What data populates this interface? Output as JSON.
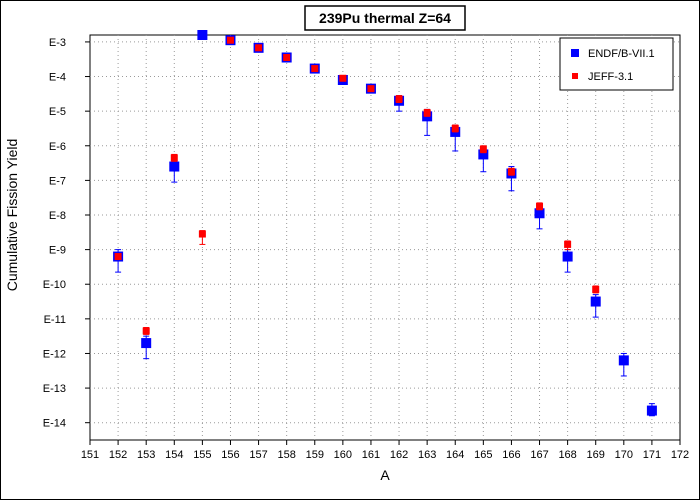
{
  "chart_data": {
    "type": "scatter",
    "title": "239Pu thermal Z=64",
    "xlabel": "A",
    "ylabel": "Cumulative Fission Yield",
    "xlim": [
      151,
      172
    ],
    "ylim_log10": [
      -14.5,
      -2.8
    ],
    "y_scale": "log",
    "grid": true,
    "legend_position": "top-right",
    "x_ticks": [
      151,
      152,
      153,
      154,
      155,
      156,
      157,
      158,
      159,
      160,
      161,
      162,
      163,
      164,
      165,
      166,
      167,
      168,
      169,
      170,
      171,
      172
    ],
    "x_tick_labels": [
      "151",
      "152",
      "153",
      "154",
      "155",
      "156",
      "157",
      "158",
      "159",
      "160",
      "161",
      "162",
      "163",
      "164",
      "165",
      "166",
      "167",
      "168",
      "169",
      "170",
      "171",
      "172"
    ],
    "y_ticks_log10": [
      -3,
      -4,
      -5,
      -6,
      -7,
      -8,
      -9,
      -10,
      -11,
      -12,
      -13,
      -14
    ],
    "y_tick_labels": [
      "E-3",
      "E-4",
      "E-5",
      "E-6",
      "E-7",
      "E-8",
      "E-9",
      "E-10",
      "E-11",
      "E-12",
      "E-13",
      "E-14"
    ],
    "series": [
      {
        "name": "ENDF/B-VII.1",
        "color": "#0000ff",
        "marker": "square",
        "points": [
          {
            "x": 152,
            "log10y": -9.2,
            "err_lo": 0.45,
            "err_hi": 0.2
          },
          {
            "x": 153,
            "log10y": -11.7,
            "err_lo": 0.45,
            "err_hi": 0.2
          },
          {
            "x": 154,
            "log10y": -6.6,
            "err_lo": 0.45,
            "err_hi": 0.2
          },
          {
            "x": 155,
            "log10y": -2.8,
            "err_lo": 0,
            "err_hi": 0
          },
          {
            "x": 156,
            "log10y": -2.95,
            "err_lo": 0,
            "err_hi": 0
          },
          {
            "x": 157,
            "log10y": -3.17,
            "err_lo": 0,
            "err_hi": 0
          },
          {
            "x": 158,
            "log10y": -3.45,
            "err_lo": 0,
            "err_hi": 0
          },
          {
            "x": 159,
            "log10y": -3.77,
            "err_lo": 0,
            "err_hi": 0
          },
          {
            "x": 160,
            "log10y": -4.1,
            "err_lo": 0,
            "err_hi": 0
          },
          {
            "x": 161,
            "log10y": -4.35,
            "err_lo": 0.1,
            "err_hi": 0.05
          },
          {
            "x": 162,
            "log10y": -4.7,
            "err_lo": 0.3,
            "err_hi": 0.15
          },
          {
            "x": 163,
            "log10y": -5.15,
            "err_lo": 0.55,
            "err_hi": 0.2
          },
          {
            "x": 164,
            "log10y": -5.6,
            "err_lo": 0.55,
            "err_hi": 0.2
          },
          {
            "x": 165,
            "log10y": -6.25,
            "err_lo": 0.5,
            "err_hi": 0.2
          },
          {
            "x": 166,
            "log10y": -6.8,
            "err_lo": 0.5,
            "err_hi": 0.2
          },
          {
            "x": 167,
            "log10y": -7.95,
            "err_lo": 0.45,
            "err_hi": 0.2
          },
          {
            "x": 168,
            "log10y": -9.2,
            "err_lo": 0.45,
            "err_hi": 0.2
          },
          {
            "x": 169,
            "log10y": -10.5,
            "err_lo": 0.45,
            "err_hi": 0.2
          },
          {
            "x": 170,
            "log10y": -12.2,
            "err_lo": 0.45,
            "err_hi": 0.2
          },
          {
            "x": 171,
            "log10y": -13.65,
            "err_lo": 0.15,
            "err_hi": 0.2
          }
        ]
      },
      {
        "name": "JEFF-3.1",
        "color": "#ff0000",
        "marker": "square",
        "points": [
          {
            "x": 152,
            "log10y": -9.2,
            "err_lo": 0,
            "err_hi": 0
          },
          {
            "x": 153,
            "log10y": -11.35,
            "err_lo": 0.1,
            "err_hi": 0.1
          },
          {
            "x": 154,
            "log10y": -6.35,
            "err_lo": 0.1,
            "err_hi": 0.1
          },
          {
            "x": 155,
            "log10y": -8.55,
            "err_lo": 0.3,
            "err_hi": 0.1
          },
          {
            "x": 156,
            "log10y": -2.95,
            "err_lo": 0,
            "err_hi": 0
          },
          {
            "x": 157,
            "log10y": -3.17,
            "err_lo": 0,
            "err_hi": 0
          },
          {
            "x": 158,
            "log10y": -3.45,
            "err_lo": 0,
            "err_hi": 0
          },
          {
            "x": 159,
            "log10y": -3.77,
            "err_lo": 0,
            "err_hi": 0
          },
          {
            "x": 160,
            "log10y": -4.05,
            "err_lo": 0.05,
            "err_hi": 0.05
          },
          {
            "x": 161,
            "log10y": -4.35,
            "err_lo": 0.05,
            "err_hi": 0.05
          },
          {
            "x": 162,
            "log10y": -4.65,
            "err_lo": 0.1,
            "err_hi": 0.1
          },
          {
            "x": 163,
            "log10y": -5.05,
            "err_lo": 0.1,
            "err_hi": 0.1
          },
          {
            "x": 164,
            "log10y": -5.5,
            "err_lo": 0.1,
            "err_hi": 0.1
          },
          {
            "x": 165,
            "log10y": -6.1,
            "err_lo": 0.1,
            "err_hi": 0.1
          },
          {
            "x": 166,
            "log10y": -6.75,
            "err_lo": 0.1,
            "err_hi": 0.1
          },
          {
            "x": 167,
            "log10y": -7.75,
            "err_lo": 0.1,
            "err_hi": 0.1
          },
          {
            "x": 168,
            "log10y": -8.85,
            "err_lo": 0.15,
            "err_hi": 0.1
          },
          {
            "x": 169,
            "log10y": -10.15,
            "err_lo": 0.1,
            "err_hi": 0.1
          }
        ]
      }
    ]
  }
}
